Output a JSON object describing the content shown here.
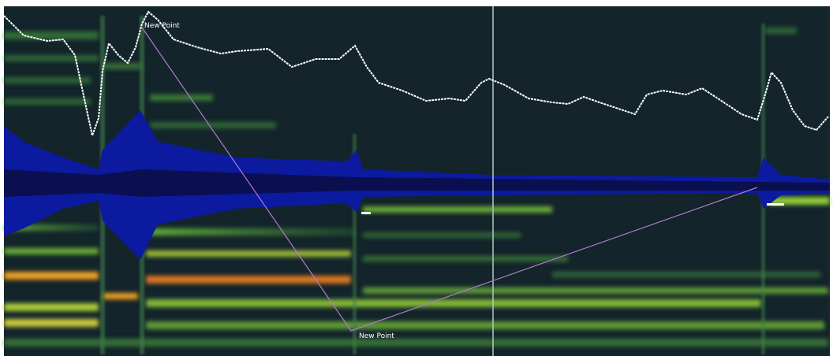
{
  "points": [
    {
      "label": "New Point"
    },
    {
      "label": "New Point"
    }
  ]
}
